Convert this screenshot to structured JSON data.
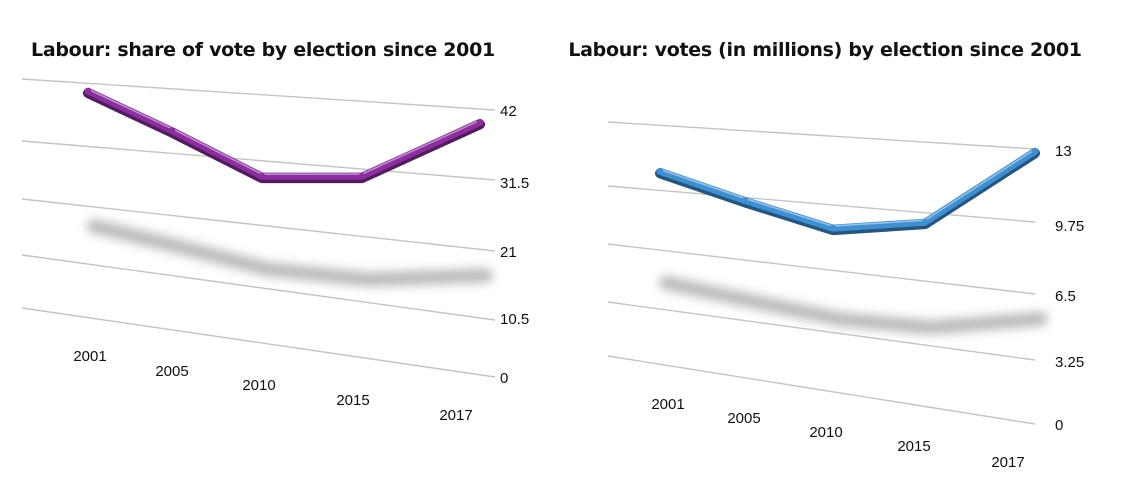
{
  "chart_data": [
    {
      "type": "line",
      "title": "Labour: share of vote by election since 2001",
      "categories": [
        "2001",
        "2005",
        "2010",
        "2015",
        "2017"
      ],
      "values": [
        40.7,
        35.2,
        29.0,
        30.4,
        40.0
      ],
      "yticks": [
        "0",
        "10.5",
        "21",
        "31.5",
        "42"
      ],
      "ylim": [
        0,
        42
      ],
      "color": "#8b2f9e",
      "grid": true
    },
    {
      "type": "line",
      "title": "Labour: votes (in millions) by election since 2001",
      "categories": [
        "2001",
        "2005",
        "2010",
        "2015",
        "2017"
      ],
      "values": [
        10.7,
        9.6,
        8.6,
        9.3,
        12.9
      ],
      "yticks": [
        "0",
        "3.25",
        "6.5",
        "9.75",
        "13"
      ],
      "ylim": [
        0,
        13
      ],
      "color": "#3f8fd1",
      "grid": true
    }
  ]
}
